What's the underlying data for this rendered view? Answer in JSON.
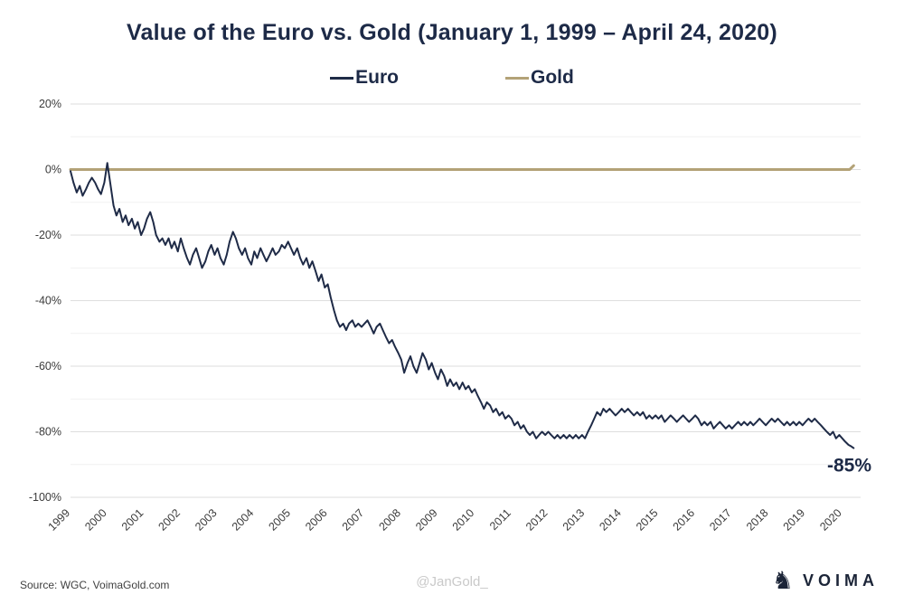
{
  "page": {
    "source": "Source: WGC, VoimaGold.com",
    "watermark": "@JanGold_",
    "brand": "VOIMA"
  },
  "legend": [
    {
      "label": "Euro",
      "color": "#1f2b47"
    },
    {
      "label": "Gold",
      "color": "#b3a277"
    }
  ],
  "chart_data": {
    "type": "line",
    "title": "Value of the Euro vs. Gold (January 1, 1999 – April 24, 2020)",
    "xlabel": "",
    "ylabel": "",
    "grid": true,
    "legend_position": "top-center",
    "ylim": [
      -100,
      20
    ],
    "yticks": [
      20,
      0,
      -20,
      -40,
      -60,
      -80,
      -100
    ],
    "ytick_labels": [
      "20%",
      "0%",
      "-20%",
      "-40%",
      "-60%",
      "-80%",
      "-100%"
    ],
    "minor_grid_step": 10,
    "xlim": [
      1999,
      2020.5
    ],
    "xticks": [
      1999,
      2000,
      2001,
      2002,
      2003,
      2004,
      2005,
      2006,
      2007,
      2008,
      2009,
      2010,
      2011,
      2012,
      2013,
      2014,
      2015,
      2016,
      2017,
      2018,
      2019,
      2020
    ],
    "annotation": {
      "label": "-85%",
      "x": 2020.5,
      "y": -85
    },
    "series": [
      {
        "name": "Euro",
        "color": "#1f2b47",
        "width": 2,
        "points": [
          [
            1999.0,
            -0.5
          ],
          [
            1999.08,
            -4
          ],
          [
            1999.17,
            -7
          ],
          [
            1999.25,
            -5
          ],
          [
            1999.33,
            -8
          ],
          [
            1999.42,
            -6
          ],
          [
            1999.5,
            -4
          ],
          [
            1999.58,
            -2.5
          ],
          [
            1999.67,
            -4
          ],
          [
            1999.75,
            -6
          ],
          [
            1999.83,
            -7.5
          ],
          [
            1999.92,
            -4
          ],
          [
            2000.0,
            2
          ],
          [
            2000.08,
            -4
          ],
          [
            2000.17,
            -11
          ],
          [
            2000.25,
            -14
          ],
          [
            2000.33,
            -12
          ],
          [
            2000.42,
            -16
          ],
          [
            2000.5,
            -14
          ],
          [
            2000.58,
            -17
          ],
          [
            2000.67,
            -15
          ],
          [
            2000.75,
            -18
          ],
          [
            2000.83,
            -16
          ],
          [
            2000.92,
            -20
          ],
          [
            2001.0,
            -18
          ],
          [
            2001.08,
            -15
          ],
          [
            2001.17,
            -13
          ],
          [
            2001.25,
            -16
          ],
          [
            2001.33,
            -20
          ],
          [
            2001.42,
            -22
          ],
          [
            2001.5,
            -21
          ],
          [
            2001.58,
            -23
          ],
          [
            2001.67,
            -21
          ],
          [
            2001.75,
            -24
          ],
          [
            2001.83,
            -22
          ],
          [
            2001.92,
            -25
          ],
          [
            2002.0,
            -21
          ],
          [
            2002.08,
            -24
          ],
          [
            2002.17,
            -27
          ],
          [
            2002.25,
            -29
          ],
          [
            2002.33,
            -26
          ],
          [
            2002.42,
            -24
          ],
          [
            2002.5,
            -27
          ],
          [
            2002.58,
            -30
          ],
          [
            2002.67,
            -28
          ],
          [
            2002.75,
            -25
          ],
          [
            2002.83,
            -23
          ],
          [
            2002.92,
            -26
          ],
          [
            2003.0,
            -24
          ],
          [
            2003.08,
            -27
          ],
          [
            2003.17,
            -29
          ],
          [
            2003.25,
            -26
          ],
          [
            2003.33,
            -22
          ],
          [
            2003.42,
            -19
          ],
          [
            2003.5,
            -21
          ],
          [
            2003.58,
            -24
          ],
          [
            2003.67,
            -26
          ],
          [
            2003.75,
            -24
          ],
          [
            2003.83,
            -27
          ],
          [
            2003.92,
            -29
          ],
          [
            2004.0,
            -25
          ],
          [
            2004.08,
            -27
          ],
          [
            2004.17,
            -24
          ],
          [
            2004.25,
            -26
          ],
          [
            2004.33,
            -28
          ],
          [
            2004.42,
            -26
          ],
          [
            2004.5,
            -24
          ],
          [
            2004.58,
            -26
          ],
          [
            2004.67,
            -25
          ],
          [
            2004.75,
            -23
          ],
          [
            2004.83,
            -24
          ],
          [
            2004.92,
            -22
          ],
          [
            2005.0,
            -24
          ],
          [
            2005.08,
            -26
          ],
          [
            2005.17,
            -24
          ],
          [
            2005.25,
            -27
          ],
          [
            2005.33,
            -29
          ],
          [
            2005.42,
            -27
          ],
          [
            2005.5,
            -30
          ],
          [
            2005.58,
            -28
          ],
          [
            2005.67,
            -31
          ],
          [
            2005.75,
            -34
          ],
          [
            2005.83,
            -32
          ],
          [
            2005.92,
            -36
          ],
          [
            2006.0,
            -35
          ],
          [
            2006.08,
            -39
          ],
          [
            2006.17,
            -43
          ],
          [
            2006.25,
            -46
          ],
          [
            2006.33,
            -48
          ],
          [
            2006.42,
            -47
          ],
          [
            2006.5,
            -49
          ],
          [
            2006.58,
            -47
          ],
          [
            2006.67,
            -46
          ],
          [
            2006.75,
            -48
          ],
          [
            2006.83,
            -47
          ],
          [
            2006.92,
            -48
          ],
          [
            2007.0,
            -47
          ],
          [
            2007.08,
            -46
          ],
          [
            2007.17,
            -48
          ],
          [
            2007.25,
            -50
          ],
          [
            2007.33,
            -48
          ],
          [
            2007.42,
            -47
          ],
          [
            2007.5,
            -49
          ],
          [
            2007.58,
            -51
          ],
          [
            2007.67,
            -53
          ],
          [
            2007.75,
            -52
          ],
          [
            2007.83,
            -54
          ],
          [
            2007.92,
            -56
          ],
          [
            2008.0,
            -58
          ],
          [
            2008.08,
            -62
          ],
          [
            2008.17,
            -59
          ],
          [
            2008.25,
            -57
          ],
          [
            2008.33,
            -60
          ],
          [
            2008.42,
            -62
          ],
          [
            2008.5,
            -59
          ],
          [
            2008.58,
            -56
          ],
          [
            2008.67,
            -58
          ],
          [
            2008.75,
            -61
          ],
          [
            2008.83,
            -59
          ],
          [
            2008.92,
            -62
          ],
          [
            2009.0,
            -64
          ],
          [
            2009.08,
            -61
          ],
          [
            2009.17,
            -63
          ],
          [
            2009.25,
            -66
          ],
          [
            2009.33,
            -64
          ],
          [
            2009.42,
            -66
          ],
          [
            2009.5,
            -65
          ],
          [
            2009.58,
            -67
          ],
          [
            2009.67,
            -65
          ],
          [
            2009.75,
            -67
          ],
          [
            2009.83,
            -66
          ],
          [
            2009.92,
            -68
          ],
          [
            2010.0,
            -67
          ],
          [
            2010.08,
            -69
          ],
          [
            2010.17,
            -71
          ],
          [
            2010.25,
            -73
          ],
          [
            2010.33,
            -71
          ],
          [
            2010.42,
            -72
          ],
          [
            2010.5,
            -74
          ],
          [
            2010.58,
            -73
          ],
          [
            2010.67,
            -75
          ],
          [
            2010.75,
            -74
          ],
          [
            2010.83,
            -76
          ],
          [
            2010.92,
            -75
          ],
          [
            2011.0,
            -76
          ],
          [
            2011.08,
            -78
          ],
          [
            2011.17,
            -77
          ],
          [
            2011.25,
            -79
          ],
          [
            2011.33,
            -78
          ],
          [
            2011.42,
            -80
          ],
          [
            2011.5,
            -81
          ],
          [
            2011.58,
            -80
          ],
          [
            2011.67,
            -82
          ],
          [
            2011.75,
            -81
          ],
          [
            2011.83,
            -80
          ],
          [
            2011.92,
            -81
          ],
          [
            2012.0,
            -80
          ],
          [
            2012.08,
            -81
          ],
          [
            2012.17,
            -82
          ],
          [
            2012.25,
            -81
          ],
          [
            2012.33,
            -82
          ],
          [
            2012.42,
            -81
          ],
          [
            2012.5,
            -82
          ],
          [
            2012.58,
            -81
          ],
          [
            2012.67,
            -82
          ],
          [
            2012.75,
            -81
          ],
          [
            2012.83,
            -82
          ],
          [
            2012.92,
            -81
          ],
          [
            2013.0,
            -82
          ],
          [
            2013.08,
            -80
          ],
          [
            2013.17,
            -78
          ],
          [
            2013.25,
            -76
          ],
          [
            2013.33,
            -74
          ],
          [
            2013.42,
            -75
          ],
          [
            2013.5,
            -73
          ],
          [
            2013.58,
            -74
          ],
          [
            2013.67,
            -73
          ],
          [
            2013.75,
            -74
          ],
          [
            2013.83,
            -75
          ],
          [
            2013.92,
            -74
          ],
          [
            2014.0,
            -73
          ],
          [
            2014.08,
            -74
          ],
          [
            2014.17,
            -73
          ],
          [
            2014.25,
            -74
          ],
          [
            2014.33,
            -75
          ],
          [
            2014.42,
            -74
          ],
          [
            2014.5,
            -75
          ],
          [
            2014.58,
            -74
          ],
          [
            2014.67,
            -76
          ],
          [
            2014.75,
            -75
          ],
          [
            2014.83,
            -76
          ],
          [
            2014.92,
            -75
          ],
          [
            2015.0,
            -76
          ],
          [
            2015.08,
            -75
          ],
          [
            2015.17,
            -77
          ],
          [
            2015.25,
            -76
          ],
          [
            2015.33,
            -75
          ],
          [
            2015.42,
            -76
          ],
          [
            2015.5,
            -77
          ],
          [
            2015.58,
            -76
          ],
          [
            2015.67,
            -75
          ],
          [
            2015.75,
            -76
          ],
          [
            2015.83,
            -77
          ],
          [
            2015.92,
            -76
          ],
          [
            2016.0,
            -75
          ],
          [
            2016.08,
            -76
          ],
          [
            2016.17,
            -78
          ],
          [
            2016.25,
            -77
          ],
          [
            2016.33,
            -78
          ],
          [
            2016.42,
            -77
          ],
          [
            2016.5,
            -79
          ],
          [
            2016.58,
            -78
          ],
          [
            2016.67,
            -77
          ],
          [
            2016.75,
            -78
          ],
          [
            2016.83,
            -79
          ],
          [
            2016.92,
            -78
          ],
          [
            2017.0,
            -79
          ],
          [
            2017.08,
            -78
          ],
          [
            2017.17,
            -77
          ],
          [
            2017.25,
            -78
          ],
          [
            2017.33,
            -77
          ],
          [
            2017.42,
            -78
          ],
          [
            2017.5,
            -77
          ],
          [
            2017.58,
            -78
          ],
          [
            2017.67,
            -77
          ],
          [
            2017.75,
            -76
          ],
          [
            2017.83,
            -77
          ],
          [
            2017.92,
            -78
          ],
          [
            2018.0,
            -77
          ],
          [
            2018.08,
            -76
          ],
          [
            2018.17,
            -77
          ],
          [
            2018.25,
            -76
          ],
          [
            2018.33,
            -77
          ],
          [
            2018.42,
            -78
          ],
          [
            2018.5,
            -77
          ],
          [
            2018.58,
            -78
          ],
          [
            2018.67,
            -77
          ],
          [
            2018.75,
            -78
          ],
          [
            2018.83,
            -77
          ],
          [
            2018.92,
            -78
          ],
          [
            2019.0,
            -77
          ],
          [
            2019.08,
            -76
          ],
          [
            2019.17,
            -77
          ],
          [
            2019.25,
            -76
          ],
          [
            2019.33,
            -77
          ],
          [
            2019.42,
            -78
          ],
          [
            2019.5,
            -79
          ],
          [
            2019.58,
            -80
          ],
          [
            2019.67,
            -81
          ],
          [
            2019.75,
            -80
          ],
          [
            2019.83,
            -82
          ],
          [
            2019.92,
            -81
          ],
          [
            2020.0,
            -82
          ],
          [
            2020.08,
            -83
          ],
          [
            2020.17,
            -84
          ],
          [
            2020.25,
            -84.5
          ],
          [
            2020.31,
            -85
          ]
        ]
      },
      {
        "name": "Gold",
        "color": "#b3a277",
        "width": 3,
        "points": [
          [
            1999.0,
            0
          ],
          [
            2020.2,
            0
          ],
          [
            2020.31,
            1.2
          ]
        ]
      }
    ]
  }
}
